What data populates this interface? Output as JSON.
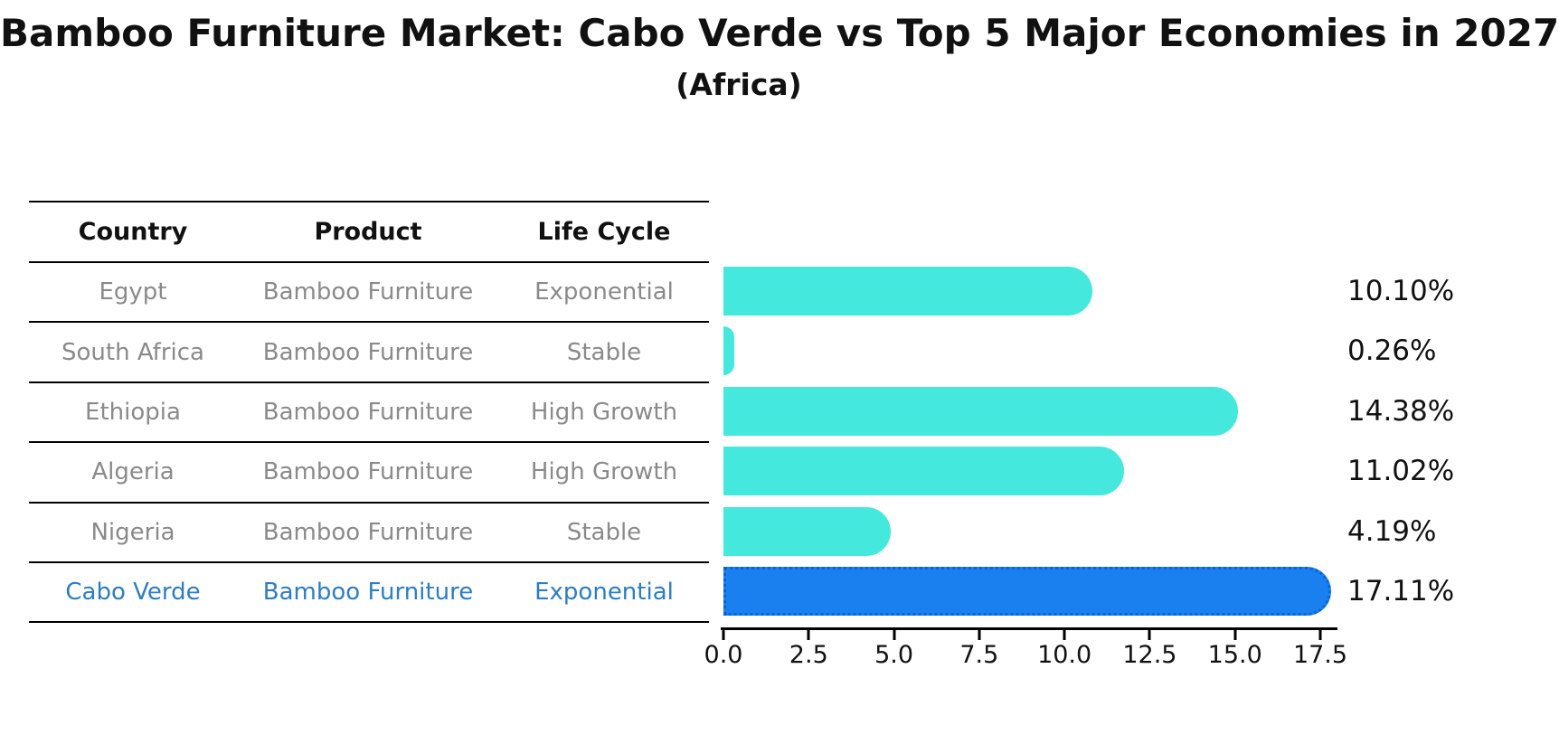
{
  "title": "Bamboo Furniture Market: Cabo Verde vs Top 5 Major Economies in 2027",
  "subtitle": "(Africa)",
  "table": {
    "headers": {
      "country": "Country",
      "product": "Product",
      "life_cycle": "Life Cycle"
    },
    "rows": [
      {
        "country": "Egypt",
        "product": "Bamboo Furniture",
        "life_cycle": "Exponential",
        "highlight": false
      },
      {
        "country": "South Africa",
        "product": "Bamboo Furniture",
        "life_cycle": "Stable",
        "highlight": false
      },
      {
        "country": "Ethiopia",
        "product": "Bamboo Furniture",
        "life_cycle": "High Growth",
        "highlight": false
      },
      {
        "country": "Algeria",
        "product": "Bamboo Furniture",
        "life_cycle": "High Growth",
        "highlight": false
      },
      {
        "country": "Nigeria",
        "product": "Bamboo Furniture",
        "life_cycle": "Stable",
        "highlight": false
      },
      {
        "country": "Cabo Verde",
        "product": "Bamboo Furniture",
        "life_cycle": "Exponential",
        "highlight": true
      }
    ]
  },
  "chart_data": {
    "type": "bar",
    "orientation": "horizontal",
    "title": "Bamboo Furniture Market: Cabo Verde vs Top 5 Major Economies in 2027 (Africa)",
    "categories": [
      "Egypt",
      "South Africa",
      "Ethiopia",
      "Algeria",
      "Nigeria",
      "Cabo Verde"
    ],
    "values": [
      10.1,
      0.26,
      14.38,
      11.02,
      4.19,
      17.11
    ],
    "value_labels": [
      "10.10%",
      "0.26%",
      "14.38%",
      "11.02%",
      "4.19%",
      "17.11%"
    ],
    "x_ticks": [
      "0.0",
      "2.5",
      "5.0",
      "7.5",
      "10.0",
      "12.5",
      "15.0",
      "17.5"
    ],
    "xlim": [
      0,
      17.5
    ],
    "grid": false,
    "legend": "none",
    "bar_color": "#45e8dd",
    "highlight_color": "#1a80f0",
    "highlight_index": 5
  },
  "colors": {
    "bar": "#45e8dd",
    "highlight_bar": "#1a80f0",
    "highlight_bar_border": "#0d62d8",
    "highlight_text": "#2e7dc1",
    "cell_text": "#8a8a8a",
    "heading_text": "#111111",
    "axis": "#000000"
  }
}
